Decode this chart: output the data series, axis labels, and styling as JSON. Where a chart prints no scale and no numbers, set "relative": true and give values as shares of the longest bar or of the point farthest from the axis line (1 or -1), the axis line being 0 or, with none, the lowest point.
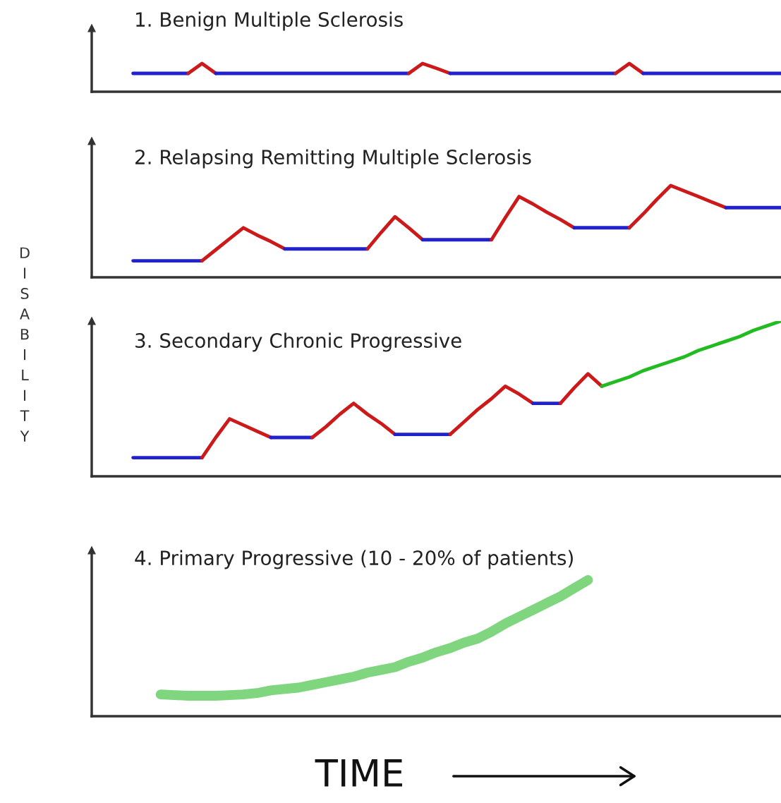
{
  "chart_data": [
    {
      "type": "line",
      "title": "1. Benign Multiple Sclerosis",
      "ylabel": "DISABILITY",
      "relative": true,
      "tick_labels": false,
      "categories": [
        null,
        null,
        null,
        null,
        null,
        null,
        null,
        null,
        null,
        null,
        null,
        null,
        null,
        null,
        null,
        null,
        null,
        null,
        null,
        null,
        null,
        null,
        null,
        null,
        null,
        null,
        null,
        null,
        null,
        null,
        null,
        null,
        null,
        null,
        null,
        null,
        null,
        null,
        null,
        null,
        null,
        null,
        null,
        null,
        null,
        null,
        null,
        null,
        null,
        null,
        null
      ],
      "series": [
        {
          "color": "#2222cc",
          "values": [
            null,
            null,
            null,
            0.65,
            0.65,
            0.65,
            0.65,
            0.65,
            null,
            null,
            null,
            null,
            null,
            null,
            null,
            null,
            null,
            null,
            null,
            null,
            null,
            null,
            null,
            null,
            null,
            null,
            null,
            null,
            null,
            null,
            null,
            null,
            null,
            null,
            null,
            null,
            null,
            null,
            null,
            null,
            null,
            null,
            null,
            null,
            null,
            null,
            null,
            null,
            null,
            null,
            null
          ]
        },
        {
          "color": "#cc1a1a",
          "values": [
            null,
            null,
            null,
            null,
            null,
            null,
            null,
            0.65,
            1,
            0.65,
            null,
            null,
            null,
            null,
            null,
            null,
            null,
            null,
            null,
            null,
            null,
            null,
            null,
            null,
            null,
            null,
            null,
            null,
            null,
            null,
            null,
            null,
            null,
            null,
            null,
            null,
            null,
            null,
            null,
            null,
            null,
            null,
            null,
            null,
            null,
            null,
            null,
            null,
            null,
            null,
            null
          ]
        },
        {
          "color": "#2222cc",
          "values": [
            null,
            null,
            null,
            null,
            null,
            null,
            null,
            null,
            null,
            0.65,
            0.65,
            0.65,
            0.65,
            0.65,
            0.65,
            0.65,
            0.65,
            0.65,
            0.65,
            0.65,
            0.65,
            0.65,
            0.65,
            0.65,
            null,
            null,
            null,
            null,
            null,
            null,
            null,
            null,
            null,
            null,
            null,
            null,
            null,
            null,
            null,
            null,
            null,
            null,
            null,
            null,
            null,
            null,
            null,
            null,
            null,
            null,
            null
          ]
        },
        {
          "color": "#cc1a1a",
          "values": [
            null,
            null,
            null,
            null,
            null,
            null,
            null,
            null,
            null,
            null,
            null,
            null,
            null,
            null,
            null,
            null,
            null,
            null,
            null,
            null,
            null,
            null,
            null,
            0.65,
            1,
            0.83,
            0.65,
            null,
            null,
            null,
            null,
            null,
            null,
            null,
            null,
            null,
            null,
            null,
            null,
            null,
            null,
            null,
            null,
            null,
            null,
            null,
            null,
            null,
            null,
            null,
            null
          ]
        },
        {
          "color": "#2222cc",
          "values": [
            null,
            null,
            null,
            null,
            null,
            null,
            null,
            null,
            null,
            null,
            null,
            null,
            null,
            null,
            null,
            null,
            null,
            null,
            null,
            null,
            null,
            null,
            null,
            null,
            null,
            null,
            0.65,
            0.65,
            0.65,
            0.65,
            0.65,
            0.65,
            0.65,
            0.65,
            0.65,
            0.65,
            0.65,
            0.65,
            0.65,
            null,
            null,
            null,
            null,
            null,
            null,
            null,
            null,
            null,
            null,
            null,
            null
          ]
        },
        {
          "color": "#cc1a1a",
          "values": [
            null,
            null,
            null,
            null,
            null,
            null,
            null,
            null,
            null,
            null,
            null,
            null,
            null,
            null,
            null,
            null,
            null,
            null,
            null,
            null,
            null,
            null,
            null,
            null,
            null,
            null,
            null,
            null,
            null,
            null,
            null,
            null,
            null,
            null,
            null,
            null,
            null,
            null,
            0.65,
            1,
            0.65,
            null,
            null,
            null,
            null,
            null,
            null,
            null,
            null,
            null,
            null
          ]
        },
        {
          "color": "#2222cc",
          "values": [
            null,
            null,
            null,
            null,
            null,
            null,
            null,
            null,
            null,
            null,
            null,
            null,
            null,
            null,
            null,
            null,
            null,
            null,
            null,
            null,
            null,
            null,
            null,
            null,
            null,
            null,
            null,
            null,
            null,
            null,
            null,
            null,
            null,
            null,
            null,
            null,
            null,
            null,
            null,
            null,
            0.65,
            0.65,
            0.65,
            0.65,
            0.65,
            0.65,
            0.65,
            0.65,
            0.65,
            0.65,
            0.65
          ]
        }
      ]
    },
    {
      "type": "line",
      "title": "2. Relapsing Remitting Multiple Sclerosis",
      "relative": true,
      "tick_labels": false,
      "categories": [
        null,
        null,
        null,
        null,
        null,
        null,
        null,
        null,
        null,
        null,
        null,
        null,
        null,
        null,
        null,
        null,
        null,
        null,
        null,
        null,
        null,
        null,
        null,
        null,
        null,
        null,
        null,
        null,
        null,
        null,
        null,
        null,
        null,
        null,
        null,
        null,
        null,
        null,
        null,
        null,
        null,
        null,
        null,
        null,
        null,
        null,
        null,
        null,
        null,
        null,
        null
      ],
      "series": [
        {
          "color": "#2222cc",
          "values": [
            null,
            null,
            null,
            0.18,
            0.18,
            0.18,
            0.18,
            0.18,
            0.18,
            null,
            null,
            null,
            null,
            null,
            null,
            null,
            null,
            null,
            null,
            null,
            null,
            null,
            null,
            null,
            null,
            null,
            null,
            null,
            null,
            null,
            null,
            null,
            null,
            null,
            null,
            null,
            null,
            null,
            null,
            null,
            null,
            null,
            null,
            null,
            null,
            null,
            null,
            null,
            null,
            null,
            null
          ]
        },
        {
          "color": "#cc1a1a",
          "values": [
            null,
            null,
            null,
            null,
            null,
            null,
            null,
            null,
            0.18,
            0.3,
            0.42,
            0.54,
            0.46,
            0.39,
            0.31,
            null,
            null,
            null,
            null,
            null,
            null,
            null,
            null,
            null,
            null,
            null,
            null,
            null,
            null,
            null,
            null,
            null,
            null,
            null,
            null,
            null,
            null,
            null,
            null,
            null,
            null,
            null,
            null,
            null,
            null,
            null,
            null,
            null,
            null,
            null,
            null
          ]
        },
        {
          "color": "#2222cc",
          "values": [
            null,
            null,
            null,
            null,
            null,
            null,
            null,
            null,
            null,
            null,
            null,
            null,
            null,
            null,
            0.31,
            0.31,
            0.31,
            0.31,
            0.31,
            0.31,
            0.31,
            null,
            null,
            null,
            null,
            null,
            null,
            null,
            null,
            null,
            null,
            null,
            null,
            null,
            null,
            null,
            null,
            null,
            null,
            null,
            null,
            null,
            null,
            null,
            null,
            null,
            null,
            null,
            null,
            null,
            null
          ]
        },
        {
          "color": "#cc1a1a",
          "values": [
            null,
            null,
            null,
            null,
            null,
            null,
            null,
            null,
            null,
            null,
            null,
            null,
            null,
            null,
            null,
            null,
            null,
            null,
            null,
            null,
            0.31,
            0.49,
            0.66,
            0.54,
            0.41,
            null,
            null,
            null,
            null,
            null,
            null,
            null,
            null,
            null,
            null,
            null,
            null,
            null,
            null,
            null,
            null,
            null,
            null,
            null,
            null,
            null,
            null,
            null,
            null,
            null,
            null
          ]
        },
        {
          "color": "#2222cc",
          "values": [
            null,
            null,
            null,
            null,
            null,
            null,
            null,
            null,
            null,
            null,
            null,
            null,
            null,
            null,
            null,
            null,
            null,
            null,
            null,
            null,
            null,
            null,
            null,
            null,
            0.41,
            0.41,
            0.41,
            0.41,
            0.41,
            0.41,
            null,
            null,
            null,
            null,
            null,
            null,
            null,
            null,
            null,
            null,
            null,
            null,
            null,
            null,
            null,
            null,
            null,
            null,
            null,
            null,
            null
          ]
        },
        {
          "color": "#cc1a1a",
          "values": [
            null,
            null,
            null,
            null,
            null,
            null,
            null,
            null,
            null,
            null,
            null,
            null,
            null,
            null,
            null,
            null,
            null,
            null,
            null,
            null,
            null,
            null,
            null,
            null,
            null,
            null,
            null,
            null,
            null,
            0.41,
            0.65,
            0.88,
            0.8,
            0.71,
            0.63,
            0.54,
            null,
            null,
            null,
            null,
            null,
            null,
            null,
            null,
            null,
            null,
            null,
            null,
            null,
            null,
            null
          ]
        },
        {
          "color": "#2222cc",
          "values": [
            null,
            null,
            null,
            null,
            null,
            null,
            null,
            null,
            null,
            null,
            null,
            null,
            null,
            null,
            null,
            null,
            null,
            null,
            null,
            null,
            null,
            null,
            null,
            null,
            null,
            null,
            null,
            null,
            null,
            null,
            null,
            null,
            null,
            null,
            null,
            0.54,
            0.54,
            0.54,
            0.54,
            0.54,
            null,
            null,
            null,
            null,
            null,
            null,
            null,
            null,
            null,
            null,
            null
          ]
        },
        {
          "color": "#cc1a1a",
          "values": [
            null,
            null,
            null,
            null,
            null,
            null,
            null,
            null,
            null,
            null,
            null,
            null,
            null,
            null,
            null,
            null,
            null,
            null,
            null,
            null,
            null,
            null,
            null,
            null,
            null,
            null,
            null,
            null,
            null,
            null,
            null,
            null,
            null,
            null,
            null,
            null,
            null,
            null,
            null,
            0.54,
            0.69,
            0.85,
            1,
            0.94,
            0.88,
            0.82,
            0.76,
            null,
            null,
            null,
            null
          ]
        },
        {
          "color": "#2222cc",
          "values": [
            null,
            null,
            null,
            null,
            null,
            null,
            null,
            null,
            null,
            null,
            null,
            null,
            null,
            null,
            null,
            null,
            null,
            null,
            null,
            null,
            null,
            null,
            null,
            null,
            null,
            null,
            null,
            null,
            null,
            null,
            null,
            null,
            null,
            null,
            null,
            null,
            null,
            null,
            null,
            null,
            null,
            null,
            null,
            null,
            null,
            null,
            0.76,
            0.76,
            0.76,
            0.76,
            0.76
          ]
        }
      ]
    },
    {
      "type": "line",
      "title": "3. Secondary Chronic Progressive",
      "relative": true,
      "tick_labels": false,
      "categories": [
        null,
        null,
        null,
        null,
        null,
        null,
        null,
        null,
        null,
        null,
        null,
        null,
        null,
        null,
        null,
        null,
        null,
        null,
        null,
        null,
        null,
        null,
        null,
        null,
        null,
        null,
        null,
        null,
        null,
        null,
        null,
        null,
        null,
        null,
        null,
        null,
        null,
        null,
        null,
        null,
        null,
        null,
        null,
        null,
        null,
        null,
        null,
        null,
        null,
        null,
        null
      ],
      "series": [
        {
          "color": "#2222cc",
          "values": [
            null,
            null,
            null,
            0.12,
            0.12,
            0.12,
            0.12,
            0.12,
            0.12,
            null,
            null,
            null,
            null,
            null,
            null,
            null,
            null,
            null,
            null,
            null,
            null,
            null,
            null,
            null,
            null,
            null,
            null,
            null,
            null,
            null,
            null,
            null,
            null,
            null,
            null,
            null,
            null,
            null,
            null,
            null,
            null,
            null,
            null,
            null,
            null,
            null,
            null,
            null,
            null,
            null,
            null
          ]
        },
        {
          "color": "#cc1a1a",
          "values": [
            null,
            null,
            null,
            null,
            null,
            null,
            null,
            null,
            0.12,
            0.25,
            0.37,
            0.33,
            0.29,
            0.25,
            null,
            null,
            null,
            null,
            null,
            null,
            null,
            null,
            null,
            null,
            null,
            null,
            null,
            null,
            null,
            null,
            null,
            null,
            null,
            null,
            null,
            null,
            null,
            null,
            null,
            null,
            null,
            null,
            null,
            null,
            null,
            null,
            null,
            null,
            null,
            null,
            null
          ]
        },
        {
          "color": "#2222cc",
          "values": [
            null,
            null,
            null,
            null,
            null,
            null,
            null,
            null,
            null,
            null,
            null,
            null,
            null,
            0.25,
            0.25,
            0.25,
            0.25,
            null,
            null,
            null,
            null,
            null,
            null,
            null,
            null,
            null,
            null,
            null,
            null,
            null,
            null,
            null,
            null,
            null,
            null,
            null,
            null,
            null,
            null,
            null,
            null,
            null,
            null,
            null,
            null,
            null,
            null,
            null,
            null,
            null,
            null
          ]
        },
        {
          "color": "#cc1a1a",
          "values": [
            null,
            null,
            null,
            null,
            null,
            null,
            null,
            null,
            null,
            null,
            null,
            null,
            null,
            null,
            null,
            null,
            0.25,
            0.32,
            0.4,
            0.47,
            0.4,
            0.34,
            0.27,
            null,
            null,
            null,
            null,
            null,
            null,
            null,
            null,
            null,
            null,
            null,
            null,
            null,
            null,
            null,
            null,
            null,
            null,
            null,
            null,
            null,
            null,
            null,
            null,
            null,
            null,
            null,
            null
          ]
        },
        {
          "color": "#2222cc",
          "values": [
            null,
            null,
            null,
            null,
            null,
            null,
            null,
            null,
            null,
            null,
            null,
            null,
            null,
            null,
            null,
            null,
            null,
            null,
            null,
            null,
            null,
            null,
            0.27,
            0.27,
            0.27,
            0.27,
            0.27,
            null,
            null,
            null,
            null,
            null,
            null,
            null,
            null,
            null,
            null,
            null,
            null,
            null,
            null,
            null,
            null,
            null,
            null,
            null,
            null,
            null,
            null,
            null,
            null
          ]
        },
        {
          "color": "#cc1a1a",
          "values": [
            null,
            null,
            null,
            null,
            null,
            null,
            null,
            null,
            null,
            null,
            null,
            null,
            null,
            null,
            null,
            null,
            null,
            null,
            null,
            null,
            null,
            null,
            null,
            null,
            null,
            null,
            0.27,
            0.35,
            0.43,
            0.5,
            0.58,
            0.53,
            0.47,
            null,
            null,
            null,
            null,
            null,
            null,
            null,
            null,
            null,
            null,
            null,
            null,
            null,
            null,
            null,
            null,
            null,
            null
          ]
        },
        {
          "color": "#2222cc",
          "values": [
            null,
            null,
            null,
            null,
            null,
            null,
            null,
            null,
            null,
            null,
            null,
            null,
            null,
            null,
            null,
            null,
            null,
            null,
            null,
            null,
            null,
            null,
            null,
            null,
            null,
            null,
            null,
            null,
            null,
            null,
            null,
            null,
            0.47,
            0.47,
            0.47,
            null,
            null,
            null,
            null,
            null,
            null,
            null,
            null,
            null,
            null,
            null,
            null,
            null,
            null,
            null,
            null
          ]
        },
        {
          "color": "#cc1a1a",
          "values": [
            null,
            null,
            null,
            null,
            null,
            null,
            null,
            null,
            null,
            null,
            null,
            null,
            null,
            null,
            null,
            null,
            null,
            null,
            null,
            null,
            null,
            null,
            null,
            null,
            null,
            null,
            null,
            null,
            null,
            null,
            null,
            null,
            null,
            null,
            0.47,
            0.57,
            0.66,
            0.58,
            null,
            null,
            null,
            null,
            null,
            null,
            null,
            null,
            null,
            null,
            null,
            null,
            null
          ]
        },
        {
          "color": "#22bb22",
          "values": [
            null,
            null,
            null,
            null,
            null,
            null,
            null,
            null,
            null,
            null,
            null,
            null,
            null,
            null,
            null,
            null,
            null,
            null,
            null,
            null,
            null,
            null,
            null,
            null,
            null,
            null,
            null,
            null,
            null,
            null,
            null,
            null,
            null,
            null,
            null,
            null,
            null,
            0.58,
            0.61,
            0.64,
            0.68,
            0.71,
            0.74,
            0.77,
            0.81,
            0.84,
            0.87,
            0.9,
            0.94,
            0.97,
            1
          ]
        }
      ]
    },
    {
      "type": "line",
      "title": "4. Primary Progressive (10 - 20% of patients)",
      "xlabel": "TIME",
      "relative": true,
      "tick_labels": false,
      "categories": [
        null,
        null,
        null,
        null,
        null,
        null,
        null,
        null,
        null,
        null,
        null,
        null,
        null,
        null,
        null,
        null,
        null,
        null,
        null,
        null,
        null,
        null,
        null,
        null,
        null,
        null,
        null,
        null,
        null,
        null,
        null,
        null,
        null,
        null,
        null,
        null,
        null,
        null,
        null,
        null,
        null,
        null,
        null,
        null,
        null,
        null,
        null,
        null,
        null,
        null,
        null
      ],
      "series": [
        {
          "color": "#7fd67f",
          "values": [
            null,
            null,
            null,
            null,
            null,
            0.16,
            0.155,
            0.15,
            0.15,
            0.15,
            0.155,
            0.16,
            0.17,
            0.19,
            0.2,
            0.21,
            0.23,
            0.25,
            0.27,
            0.29,
            0.32,
            0.34,
            0.36,
            0.4,
            0.43,
            0.47,
            0.5,
            0.54,
            0.57,
            0.62,
            0.68,
            0.73,
            0.78,
            0.83,
            0.88,
            0.94,
            1,
            null,
            null,
            null,
            null,
            null,
            null,
            null,
            null,
            null,
            null,
            null,
            null,
            null,
            null
          ]
        }
      ]
    }
  ]
}
